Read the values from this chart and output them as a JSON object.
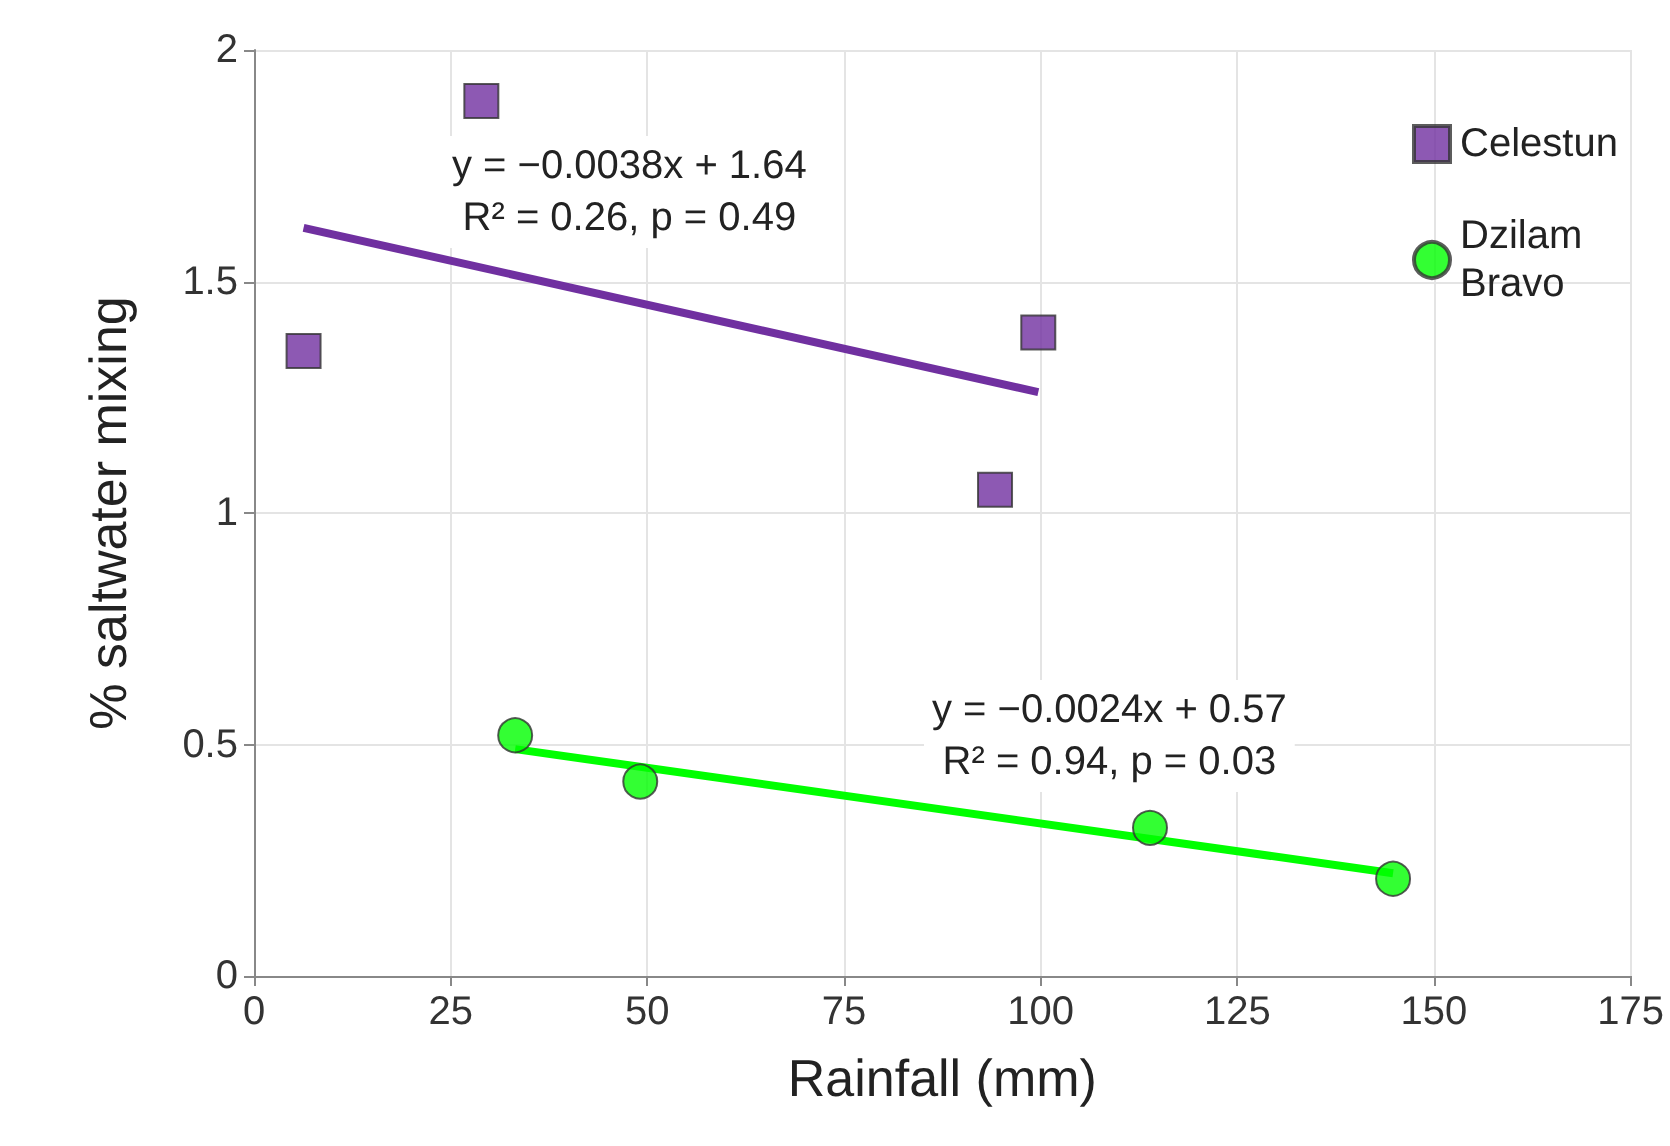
{
  "chart_data": {
    "type": "scatter",
    "xlabel": "Rainfall (mm)",
    "ylabel": "% saltwater mixing",
    "xlim": [
      0,
      175
    ],
    "xticks": [
      0,
      25,
      50,
      75,
      100,
      125,
      150,
      175
    ],
    "ylim": [
      0,
      2
    ],
    "yticks": [
      0,
      0.5,
      1,
      1.5,
      2
    ],
    "grid": true,
    "legend": "top right",
    "series": [
      {
        "name": "Celestun",
        "color": "#7030a0",
        "marker": "square",
        "x": [
          6.3,
          28.9,
          94.2,
          99.7
        ],
        "values": [
          1.35,
          1.89,
          1.05,
          1.39
        ]
      },
      {
        "name": "Dzilam Bravo",
        "color": "#00ff00",
        "marker": "circle",
        "x": [
          33.2,
          49.1,
          113.9,
          144.8
        ],
        "values": [
          0.52,
          0.42,
          0.32,
          0.21
        ]
      },
      {
        "type": "line",
        "color": "#7030a0",
        "x": [
          6.3,
          99.7
        ],
        "values": [
          1.616,
          1.261
        ]
      },
      {
        "type": "line",
        "color": "#00ff00",
        "x": [
          33.2,
          144.8
        ],
        "values": [
          0.49,
          0.222
        ]
      }
    ],
    "annotations": [
      "y = −0.0038x + 1.64\nR² = 0.26, p = 0.49",
      "y = −0.0024x + 0.57\nR² = 0.94, p = 0.03"
    ]
  }
}
